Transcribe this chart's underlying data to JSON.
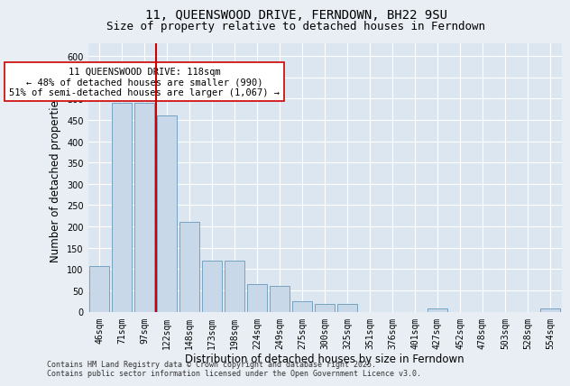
{
  "title_line1": "11, QUEENSWOOD DRIVE, FERNDOWN, BH22 9SU",
  "title_line2": "Size of property relative to detached houses in Ferndown",
  "xlabel": "Distribution of detached houses by size in Ferndown",
  "ylabel": "Number of detached properties",
  "categories": [
    "46sqm",
    "71sqm",
    "97sqm",
    "122sqm",
    "148sqm",
    "173sqm",
    "198sqm",
    "224sqm",
    "249sqm",
    "275sqm",
    "300sqm",
    "325sqm",
    "351sqm",
    "376sqm",
    "401sqm",
    "427sqm",
    "452sqm",
    "478sqm",
    "503sqm",
    "528sqm",
    "554sqm"
  ],
  "values": [
    107,
    490,
    490,
    460,
    210,
    120,
    120,
    65,
    60,
    25,
    18,
    17,
    0,
    0,
    0,
    8,
    0,
    0,
    0,
    0,
    8
  ],
  "bar_color": "#c8d8e8",
  "bar_edge_color": "#6699bb",
  "vline_x": 2.5,
  "vline_color": "#cc0000",
  "annotation_text": "11 QUEENSWOOD DRIVE: 118sqm\n← 48% of detached houses are smaller (990)\n51% of semi-detached houses are larger (1,067) →",
  "annotation_box_color": "#ffffff",
  "annotation_box_edge_color": "#cc0000",
  "ylim": [
    0,
    630
  ],
  "yticks": [
    0,
    50,
    100,
    150,
    200,
    250,
    300,
    350,
    400,
    450,
    500,
    550,
    600
  ],
  "footer_text": "Contains HM Land Registry data © Crown copyright and database right 2025.\nContains public sector information licensed under the Open Government Licence v3.0.",
  "bg_color": "#e8eef4",
  "plot_bg_color": "#dce6f0",
  "grid_color": "#ffffff",
  "title_fontsize": 10,
  "subtitle_fontsize": 9,
  "axis_label_fontsize": 8.5,
  "tick_fontsize": 7,
  "annotation_fontsize": 7.5,
  "footer_fontsize": 6
}
